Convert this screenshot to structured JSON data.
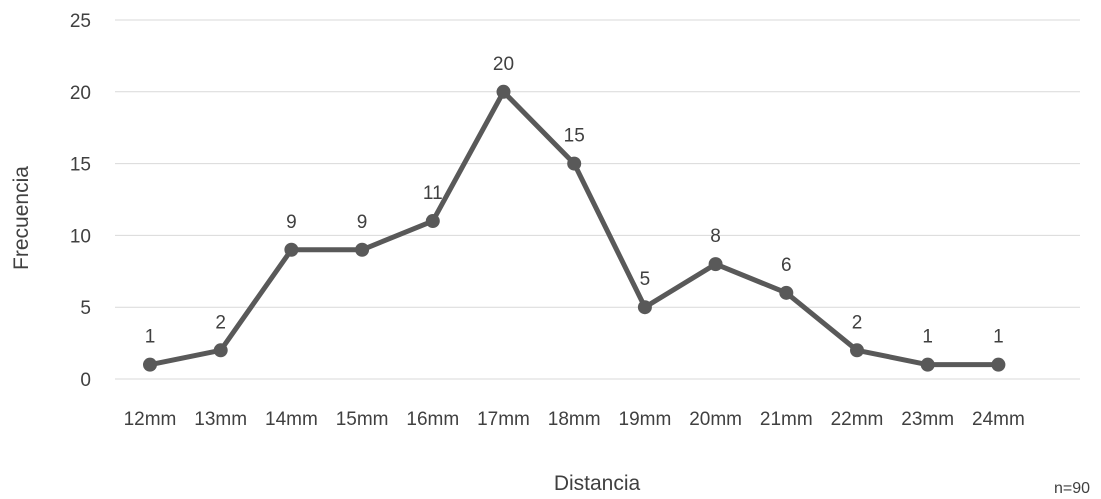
{
  "chart_data": {
    "type": "line",
    "title": "",
    "xlabel": "Distancia",
    "ylabel": "Frecuencia",
    "categories": [
      "12mm",
      "13mm",
      "14mm",
      "15mm",
      "16mm",
      "17mm",
      "18mm",
      "19mm",
      "20mm",
      "21mm",
      "22mm",
      "23mm",
      "24mm"
    ],
    "values": [
      1,
      2,
      9,
      9,
      11,
      20,
      15,
      5,
      8,
      6,
      2,
      1,
      1
    ],
    "ylim": [
      0,
      25
    ],
    "yticks": [
      0,
      5,
      10,
      15,
      20,
      25
    ],
    "grid": true,
    "legend": "none",
    "line_color": "#595959",
    "note": "n=90"
  }
}
